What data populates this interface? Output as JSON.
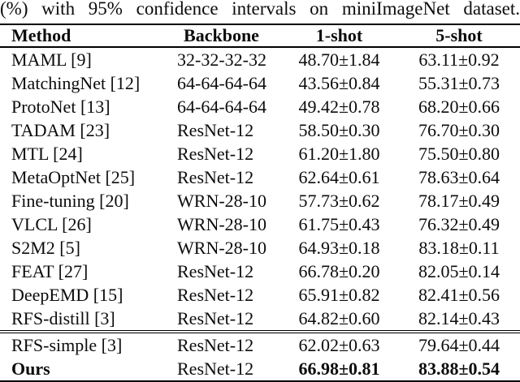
{
  "caption": "(%) with 95% confidence intervals on miniImageNet dataset.",
  "table": {
    "columns": [
      "Method",
      "Backbone",
      "1-shot",
      "5-shot"
    ],
    "rows": [
      {
        "method": "MAML [9]",
        "backbone": "32-32-32-32",
        "one_shot": "48.70±1.84",
        "five_shot": "63.11±0.92",
        "group": 1,
        "bold": false
      },
      {
        "method": "MatchingNet [12]",
        "backbone": "64-64-64-64",
        "one_shot": "43.56±0.84",
        "five_shot": "55.31±0.73",
        "group": 1,
        "bold": false
      },
      {
        "method": "ProtoNet [13]",
        "backbone": "64-64-64-64",
        "one_shot": "49.42±0.78",
        "five_shot": "68.20±0.66",
        "group": 1,
        "bold": false
      },
      {
        "method": "TADAM [23]",
        "backbone": "ResNet-12",
        "one_shot": "58.50±0.30",
        "five_shot": "76.70±0.30",
        "group": 1,
        "bold": false
      },
      {
        "method": "MTL [24]",
        "backbone": "ResNet-12",
        "one_shot": "61.20±1.80",
        "five_shot": "75.50±0.80",
        "group": 1,
        "bold": false
      },
      {
        "method": "MetaOptNet [25]",
        "backbone": "ResNet-12",
        "one_shot": "62.64±0.61",
        "five_shot": "78.63±0.64",
        "group": 1,
        "bold": false
      },
      {
        "method": "Fine-tuning [20]",
        "backbone": "WRN-28-10",
        "one_shot": "57.73±0.62",
        "five_shot": "78.17±0.49",
        "group": 1,
        "bold": false
      },
      {
        "method": "VLCL [26]",
        "backbone": "WRN-28-10",
        "one_shot": "61.75±0.43",
        "five_shot": "76.32±0.49",
        "group": 1,
        "bold": false
      },
      {
        "method": "S2M2 [5]",
        "backbone": "WRN-28-10",
        "one_shot": "64.93±0.18",
        "five_shot": "83.18±0.11",
        "group": 1,
        "bold": false
      },
      {
        "method": "FEAT [27]",
        "backbone": "ResNet-12",
        "one_shot": "66.78±0.20",
        "five_shot": "82.05±0.14",
        "group": 1,
        "bold": false
      },
      {
        "method": "DeepEMD [15]",
        "backbone": "ResNet-12",
        "one_shot": "65.91±0.82",
        "five_shot": "82.41±0.56",
        "group": 1,
        "bold": false
      },
      {
        "method": "RFS-distill [3]",
        "backbone": "ResNet-12",
        "one_shot": "64.82±0.60",
        "five_shot": "82.14±0.43",
        "group": 1,
        "bold": false
      },
      {
        "method": "RFS-simple [3]",
        "backbone": "ResNet-12",
        "one_shot": "62.02±0.63",
        "five_shot": "79.64±0.44",
        "group": 2,
        "bold": false
      },
      {
        "method": "Ours",
        "backbone": "ResNet-12",
        "one_shot": "66.98±0.81",
        "five_shot": "83.88±0.54",
        "group": 2,
        "bold": true
      }
    ]
  },
  "colors": {
    "text": "#0c0c0c",
    "background": "#ffffff",
    "rule": "#000000"
  }
}
